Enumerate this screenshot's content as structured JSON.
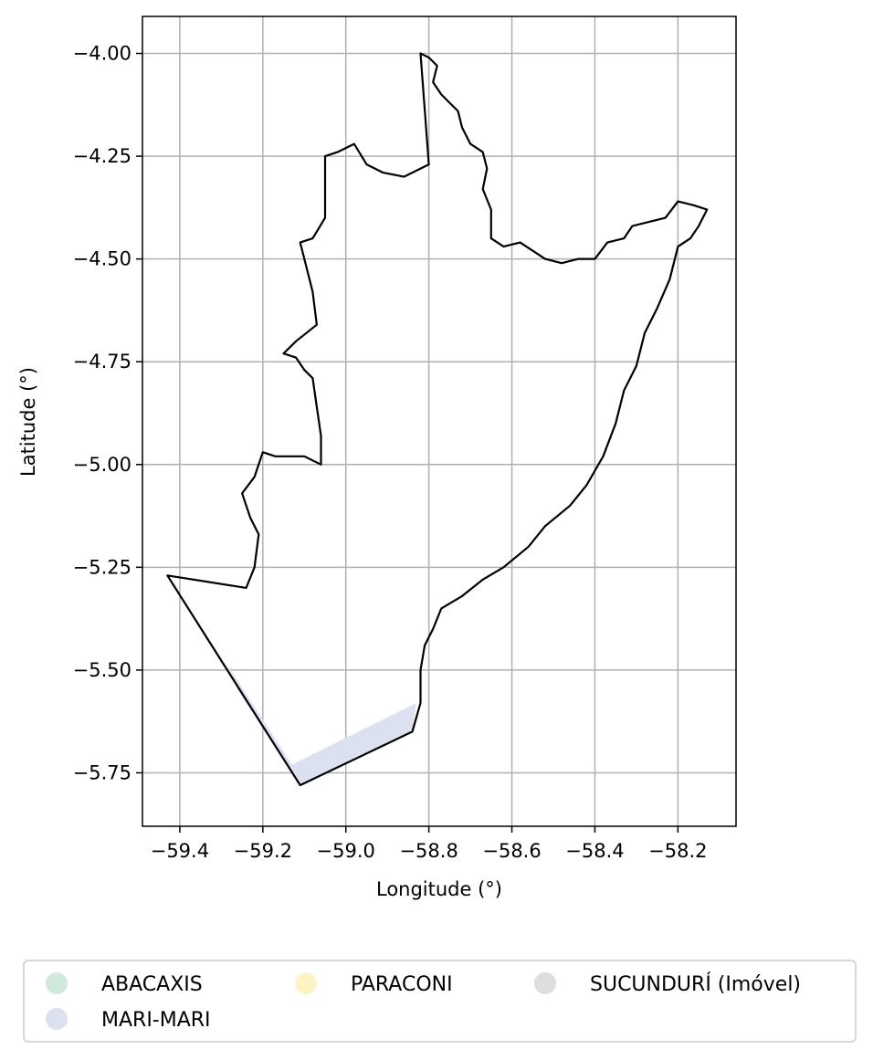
{
  "map": {
    "xlabel": "Longitude (°)",
    "ylabel": "Latitude (°)",
    "xlim": [
      -59.49,
      -58.06
    ],
    "ylim": [
      -5.88,
      -3.91
    ],
    "grid": true,
    "x_ticks": [
      {
        "value": -59.4,
        "label": "−59.4"
      },
      {
        "value": -59.2,
        "label": "−59.2"
      },
      {
        "value": -59.0,
        "label": "−59.0"
      },
      {
        "value": -58.8,
        "label": "−58.8"
      },
      {
        "value": -58.6,
        "label": "−58.6"
      },
      {
        "value": -58.4,
        "label": "−58.4"
      },
      {
        "value": -58.2,
        "label": "−58.2"
      }
    ],
    "y_ticks": [
      {
        "value": -4.0,
        "label": "−4.00"
      },
      {
        "value": -4.25,
        "label": "−4.25"
      },
      {
        "value": -4.5,
        "label": "−4.50"
      },
      {
        "value": -4.75,
        "label": "−4.75"
      },
      {
        "value": -5.0,
        "label": "−5.00"
      },
      {
        "value": -5.25,
        "label": "−5.25"
      },
      {
        "value": -5.5,
        "label": "−5.50"
      },
      {
        "value": -5.75,
        "label": "−5.75"
      }
    ],
    "boundary": [
      [
        -58.82,
        -4.0
      ],
      [
        -58.8,
        -4.01
      ],
      [
        -58.78,
        -4.03
      ],
      [
        -58.79,
        -4.07
      ],
      [
        -58.77,
        -4.1
      ],
      [
        -58.75,
        -4.12
      ],
      [
        -58.73,
        -4.14
      ],
      [
        -58.72,
        -4.18
      ],
      [
        -58.7,
        -4.22
      ],
      [
        -58.67,
        -4.24
      ],
      [
        -58.66,
        -4.28
      ],
      [
        -58.67,
        -4.33
      ],
      [
        -58.65,
        -4.38
      ],
      [
        -58.65,
        -4.45
      ],
      [
        -58.62,
        -4.47
      ],
      [
        -58.58,
        -4.46
      ],
      [
        -58.55,
        -4.48
      ],
      [
        -58.52,
        -4.5
      ],
      [
        -58.48,
        -4.51
      ],
      [
        -58.44,
        -4.5
      ],
      [
        -58.4,
        -4.5
      ],
      [
        -58.37,
        -4.46
      ],
      [
        -58.33,
        -4.45
      ],
      [
        -58.31,
        -4.42
      ],
      [
        -58.27,
        -4.41
      ],
      [
        -58.23,
        -4.4
      ],
      [
        -58.2,
        -4.36
      ],
      [
        -58.16,
        -4.37
      ],
      [
        -58.13,
        -4.38
      ],
      [
        -58.15,
        -4.42
      ],
      [
        -58.17,
        -4.45
      ],
      [
        -58.2,
        -4.47
      ],
      [
        -58.22,
        -4.55
      ],
      [
        -58.25,
        -4.62
      ],
      [
        -58.28,
        -4.68
      ],
      [
        -58.3,
        -4.76
      ],
      [
        -58.33,
        -4.82
      ],
      [
        -58.35,
        -4.9
      ],
      [
        -58.38,
        -4.98
      ],
      [
        -58.42,
        -5.05
      ],
      [
        -58.46,
        -5.1
      ],
      [
        -58.52,
        -5.15
      ],
      [
        -58.56,
        -5.2
      ],
      [
        -58.62,
        -5.25
      ],
      [
        -58.67,
        -5.28
      ],
      [
        -58.72,
        -5.32
      ],
      [
        -58.77,
        -5.35
      ],
      [
        -58.79,
        -5.4
      ],
      [
        -58.81,
        -5.44
      ],
      [
        -58.82,
        -5.5
      ],
      [
        -58.82,
        -5.58
      ],
      [
        -58.84,
        -5.65
      ],
      [
        -59.11,
        -5.78
      ],
      [
        -59.43,
        -5.27
      ],
      [
        -59.24,
        -5.3
      ],
      [
        -59.22,
        -5.25
      ],
      [
        -59.21,
        -5.17
      ],
      [
        -59.23,
        -5.13
      ],
      [
        -59.25,
        -5.07
      ],
      [
        -59.22,
        -5.03
      ],
      [
        -59.2,
        -4.97
      ],
      [
        -59.17,
        -4.98
      ],
      [
        -59.1,
        -4.98
      ],
      [
        -59.06,
        -5.0
      ],
      [
        -59.06,
        -4.93
      ],
      [
        -59.07,
        -4.86
      ],
      [
        -59.08,
        -4.79
      ],
      [
        -59.1,
        -4.77
      ],
      [
        -59.12,
        -4.74
      ],
      [
        -59.15,
        -4.73
      ],
      [
        -59.12,
        -4.7
      ],
      [
        -59.07,
        -4.66
      ],
      [
        -59.08,
        -4.58
      ],
      [
        -59.1,
        -4.5
      ],
      [
        -59.11,
        -4.46
      ],
      [
        -59.08,
        -4.45
      ],
      [
        -59.05,
        -4.4
      ],
      [
        -59.05,
        -4.3
      ],
      [
        -59.05,
        -4.25
      ],
      [
        -59.02,
        -4.24
      ],
      [
        -58.98,
        -4.22
      ],
      [
        -58.95,
        -4.27
      ],
      [
        -58.91,
        -4.29
      ],
      [
        -58.86,
        -4.3
      ],
      [
        -58.8,
        -4.27
      ],
      [
        -58.82,
        -4.0
      ]
    ],
    "regions": [
      {
        "name": "MARI-MARI",
        "color": "#dce1f0",
        "polygon": [
          [
            -59.29,
            -5.48
          ],
          [
            -59.13,
            -5.73
          ],
          [
            -58.83,
            -5.58
          ],
          [
            -58.84,
            -5.65
          ],
          [
            -59.11,
            -5.78
          ],
          [
            -59.26,
            -5.55
          ]
        ]
      }
    ],
    "legend": {
      "placement": "below",
      "items": [
        {
          "label": "ABACAXIS",
          "color": "#cfeadb"
        },
        {
          "label": "MARI-MARI",
          "color": "#dce1f0"
        },
        {
          "label": "PARACONI",
          "color": "#fdf3c4"
        },
        {
          "label": "SUCUNDURÍ (Imóvel)",
          "color": "#dedede"
        }
      ]
    }
  }
}
